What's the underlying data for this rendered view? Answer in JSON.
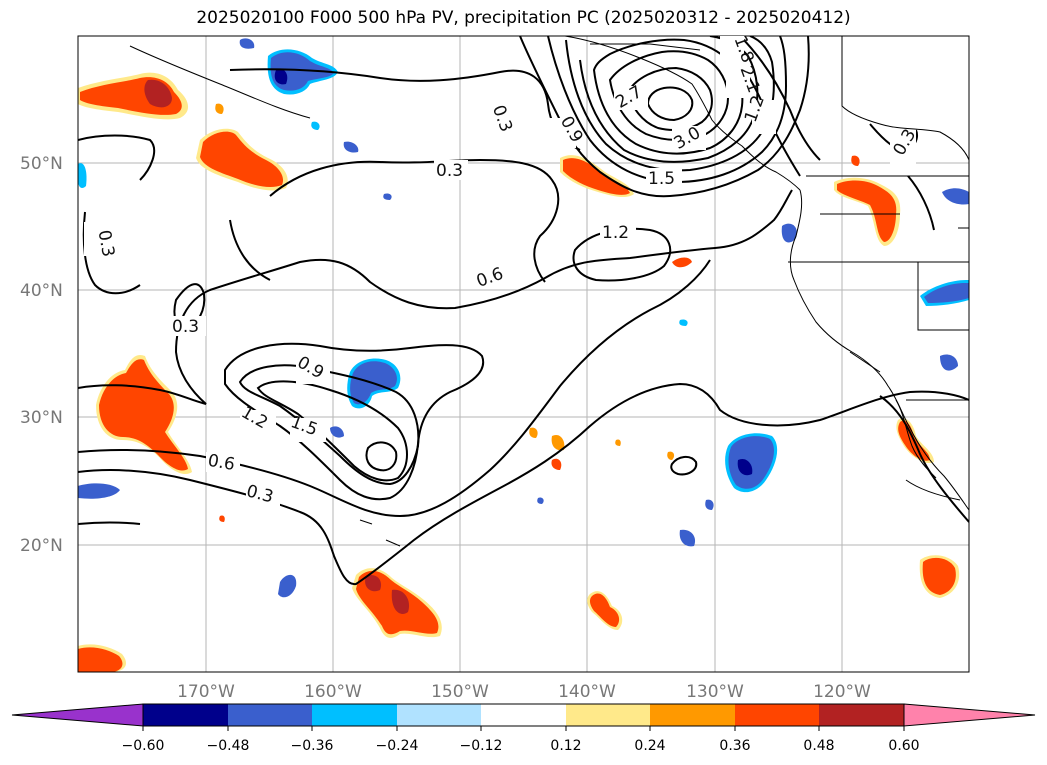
{
  "title": "2025020100 F000 500 hPa PV, precipitation PC (2025020312 - 2025020412)",
  "map": {
    "lat_labels": [
      "50°N",
      "40°N",
      "30°N",
      "20°N"
    ],
    "lon_labels": [
      "170°W",
      "160°W",
      "150°W",
      "140°W",
      "130°W",
      "120°W"
    ],
    "contour_labels": [
      "0.3",
      "0.3",
      "0.3",
      "0.3",
      "0.3",
      "0.3",
      "0.6",
      "0.6",
      "0.9",
      "0.9",
      "1.2",
      "1.2",
      "1.2",
      "1.5",
      "1.5",
      "1.8",
      "2.1",
      "2.7",
      "3.0"
    ],
    "colors": {
      "neg_deep": "#00008b",
      "neg_mid": "#3a5fcd",
      "neg_light": "#00bfff",
      "pos_light": "#ffe98a",
      "pos_mid": "#ff9900",
      "pos_strong": "#ff4500",
      "pos_deep": "#b22222"
    }
  },
  "colorbar": {
    "ticks": [
      "−0.60",
      "−0.48",
      "−0.36",
      "−0.24",
      "−0.12",
      "0.12",
      "0.24",
      "0.36",
      "0.48",
      "0.60"
    ],
    "colors": [
      "#9932cc",
      "#00008b",
      "#3a5fcd",
      "#00bfff",
      "#b0e2ff",
      "#ffffff",
      "#ffe98a",
      "#ff9900",
      "#ff4500",
      "#b22222",
      "#ff82ab"
    ]
  }
}
